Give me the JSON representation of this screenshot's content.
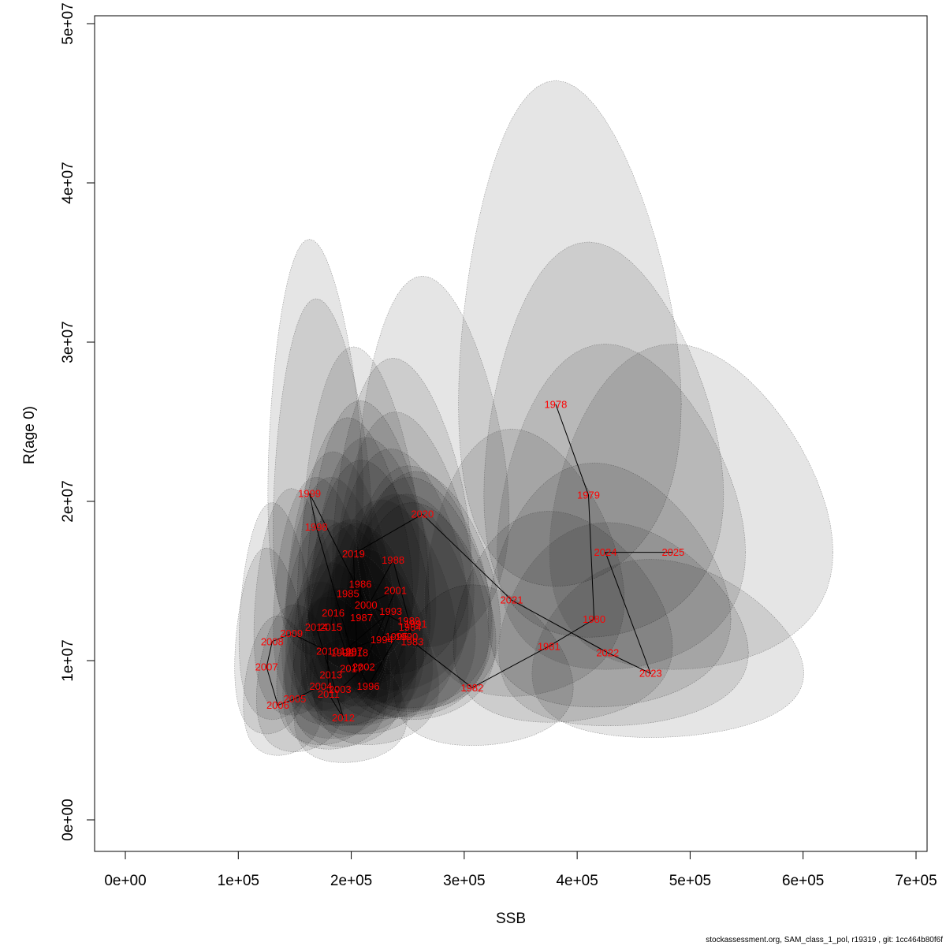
{
  "colors": {
    "ellipse_fill": "#000000",
    "ellipse_stroke": "#555555",
    "label": "#ff0000",
    "line": "#000000",
    "axis": "#000000"
  },
  "footer": "stockassessment.org, SAM_class_1_pol, r19319 , git: 1cc464b80f6f",
  "chart_data": {
    "type": "scatter",
    "title": "",
    "xlabel": "SSB",
    "ylabel": "R(age 0)",
    "xlim": [
      0,
      700000
    ],
    "ylim": [
      0,
      50000000
    ],
    "grid": false,
    "legend": "none",
    "x_ticks": [
      0,
      100000,
      200000,
      300000,
      400000,
      500000,
      600000,
      700000
    ],
    "x_tick_labels": [
      "0e+00",
      "1e+05",
      "2e+05",
      "3e+05",
      "4e+05",
      "5e+05",
      "6e+05",
      "7e+05"
    ],
    "y_ticks": [
      0,
      10000000,
      20000000,
      30000000,
      40000000,
      50000000
    ],
    "y_tick_labels": [
      "0e+00",
      "1e+07",
      "2e+07",
      "3e+07",
      "4e+07",
      "5e+07"
    ],
    "points": [
      {
        "year": "1978",
        "ssb": 381000,
        "rec": 26100000
      },
      {
        "year": "1979",
        "ssb": 410000,
        "rec": 20400000
      },
      {
        "year": "1980",
        "ssb": 415000,
        "rec": 12600000
      },
      {
        "year": "1981",
        "ssb": 375000,
        "rec": 10900000
      },
      {
        "year": "1982",
        "ssb": 307000,
        "rec": 8300000
      },
      {
        "year": "1983",
        "ssb": 254000,
        "rec": 11200000
      },
      {
        "year": "1984",
        "ssb": 252000,
        "rec": 12100000
      },
      {
        "year": "1985",
        "ssb": 197000,
        "rec": 14200000
      },
      {
        "year": "1986",
        "ssb": 208000,
        "rec": 14800000
      },
      {
        "year": "1987",
        "ssb": 209000,
        "rec": 12700000
      },
      {
        "year": "1988",
        "ssb": 237000,
        "rec": 16300000
      },
      {
        "year": "1989",
        "ssb": 251000,
        "rec": 12500000
      },
      {
        "year": "1990",
        "ssb": 249000,
        "rec": 11500000
      },
      {
        "year": "1991",
        "ssb": 257000,
        "rec": 12300000
      },
      {
        "year": "1992",
        "ssb": 192000,
        "rec": 10500000
      },
      {
        "year": "1993",
        "ssb": 235000,
        "rec": 13100000
      },
      {
        "year": "1994",
        "ssb": 227000,
        "rec": 11300000
      },
      {
        "year": "1995",
        "ssb": 240000,
        "rec": 11500000
      },
      {
        "year": "1996",
        "ssb": 215000,
        "rec": 8400000
      },
      {
        "year": "1997",
        "ssb": 200000,
        "rec": 10600000
      },
      {
        "year": "1998",
        "ssb": 169000,
        "rec": 18400000
      },
      {
        "year": "1999",
        "ssb": 163000,
        "rec": 20500000
      },
      {
        "year": "2000",
        "ssb": 213000,
        "rec": 13500000
      },
      {
        "year": "2001",
        "ssb": 239000,
        "rec": 14400000
      },
      {
        "year": "2002",
        "ssb": 211000,
        "rec": 9600000
      },
      {
        "year": "2003",
        "ssb": 190000,
        "rec": 8200000
      },
      {
        "year": "2004",
        "ssb": 173000,
        "rec": 8400000
      },
      {
        "year": "2005",
        "ssb": 150000,
        "rec": 7600000
      },
      {
        "year": "2006",
        "ssb": 135000,
        "rec": 7200000
      },
      {
        "year": "2007",
        "ssb": 125000,
        "rec": 9600000
      },
      {
        "year": "2008",
        "ssb": 130000,
        "rec": 11200000
      },
      {
        "year": "2009",
        "ssb": 147000,
        "rec": 11700000
      },
      {
        "year": "2010",
        "ssb": 179000,
        "rec": 10600000
      },
      {
        "year": "2011",
        "ssb": 180000,
        "rec": 7900000
      },
      {
        "year": "2012",
        "ssb": 193000,
        "rec": 6400000
      },
      {
        "year": "2013",
        "ssb": 182000,
        "rec": 9100000
      },
      {
        "year": "2014",
        "ssb": 169000,
        "rec": 12100000
      },
      {
        "year": "2015",
        "ssb": 182000,
        "rec": 12100000
      },
      {
        "year": "2016",
        "ssb": 184000,
        "rec": 13000000
      },
      {
        "year": "2017",
        "ssb": 200000,
        "rec": 9500000
      },
      {
        "year": "2018",
        "ssb": 205000,
        "rec": 10500000
      },
      {
        "year": "2019",
        "ssb": 202000,
        "rec": 16700000
      },
      {
        "year": "2020",
        "ssb": 263000,
        "rec": 19200000
      },
      {
        "year": "2021",
        "ssb": 342000,
        "rec": 13800000
      },
      {
        "year": "2022",
        "ssb": 427000,
        "rec": 10500000
      },
      {
        "year": "2023",
        "ssb": 465000,
        "rec": 9200000
      },
      {
        "year": "2024",
        "ssb": 425000,
        "rec": 16800000
      },
      {
        "year": "2025",
        "ssb": 485000,
        "rec": 16800000
      }
    ]
  }
}
